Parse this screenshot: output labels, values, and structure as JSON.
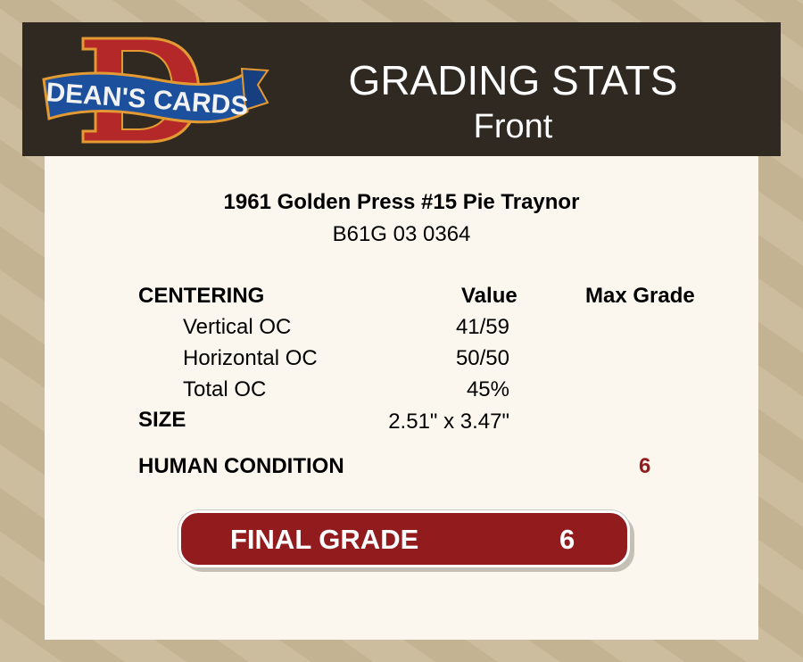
{
  "header": {
    "logo_text": "DEAN'S CARDS",
    "title": "GRADING STATS",
    "subtitle": "Front"
  },
  "card": {
    "name": "1961 Golden Press #15 Pie Traynor",
    "cert": "B61G 03 0364"
  },
  "table": {
    "section": "CENTERING",
    "col_value": "Value",
    "col_max": "Max Grade",
    "rows": [
      {
        "label": "Vertical OC",
        "value": "41/59"
      },
      {
        "label": "Horizontal OC",
        "value": "50/50"
      },
      {
        "label": "Total OC",
        "value": "45%"
      }
    ],
    "size_label": "SIZE",
    "size_value": "2.51\" x 3.47\"",
    "human_label": "HUMAN CONDITION",
    "human_value": "6"
  },
  "final": {
    "label": "FINAL GRADE",
    "value": "6"
  },
  "colors": {
    "accent": "#911b1d",
    "header_bg": "#2f2921",
    "panel_bg": "#fcf7ee"
  }
}
